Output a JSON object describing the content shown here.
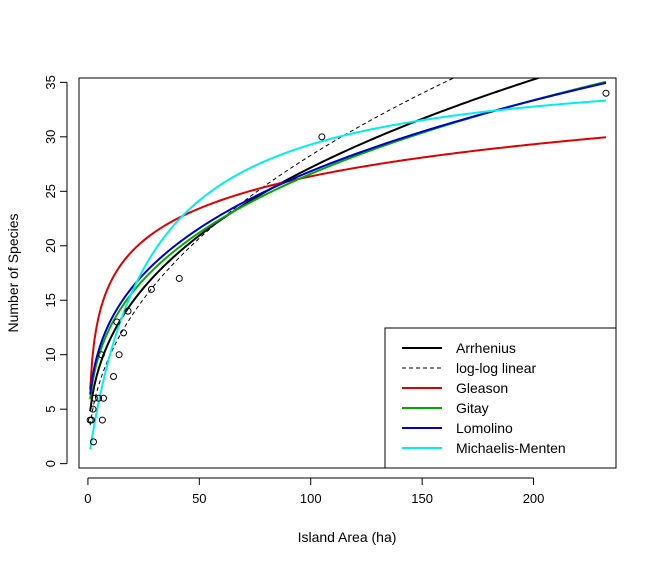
{
  "chart_data": {
    "type": "scatter",
    "xlabel": "Island Area (ha)",
    "ylabel": "Number of Species",
    "xlim": [
      -4,
      237
    ],
    "ylim": [
      -0.4,
      35.4
    ],
    "x_ticks": [
      0,
      50,
      100,
      150,
      200
    ],
    "y_ticks": [
      0,
      5,
      10,
      15,
      20,
      25,
      30,
      35
    ],
    "grid": false,
    "legend_position": "bottom-right",
    "points": [
      {
        "x": 1.0,
        "y": 4
      },
      {
        "x": 1.6,
        "y": 4
      },
      {
        "x": 2.3,
        "y": 5
      },
      {
        "x": 2.5,
        "y": 2
      },
      {
        "x": 2.9,
        "y": 6
      },
      {
        "x": 4.8,
        "y": 6
      },
      {
        "x": 6.0,
        "y": 10
      },
      {
        "x": 6.5,
        "y": 4
      },
      {
        "x": 7.0,
        "y": 6
      },
      {
        "x": 11.5,
        "y": 8
      },
      {
        "x": 13.0,
        "y": 13
      },
      {
        "x": 14.0,
        "y": 10
      },
      {
        "x": 16.0,
        "y": 12
      },
      {
        "x": 18.0,
        "y": 14
      },
      {
        "x": 28.5,
        "y": 16
      },
      {
        "x": 41.0,
        "y": 17
      },
      {
        "x": 105.0,
        "y": 30
      },
      {
        "x": 232.5,
        "y": 34
      }
    ],
    "series": [
      {
        "name": "Arrhenius",
        "color": "#000000",
        "style": "solid",
        "model": "power",
        "params": {
          "c": 4.81,
          "z": 0.376
        }
      },
      {
        "name": "log-log linear",
        "color": "#000000",
        "style": "dashed",
        "model": "power",
        "params": {
          "c": 3.53,
          "z": 0.452
        }
      },
      {
        "name": "Gleason",
        "color": "#dd0000",
        "style": "solid",
        "model": "log",
        "params": {
          "a": 6.8,
          "b": 4.25
        }
      },
      {
        "name": "Gitay",
        "color": "#00aa00",
        "style": "solid",
        "model": "power",
        "params": {
          "c": 5.9,
          "z": 0.327
        }
      },
      {
        "name": "Lomolino",
        "color": "#0000cc",
        "style": "solid",
        "model": "power",
        "params": {
          "c": 6.35,
          "z": 0.313
        }
      },
      {
        "name": "Michaelis-Menten",
        "color": "#00eeee",
        "style": "solid",
        "model": "mm",
        "params": {
          "a": 37.2,
          "b": 27
        }
      }
    ]
  }
}
